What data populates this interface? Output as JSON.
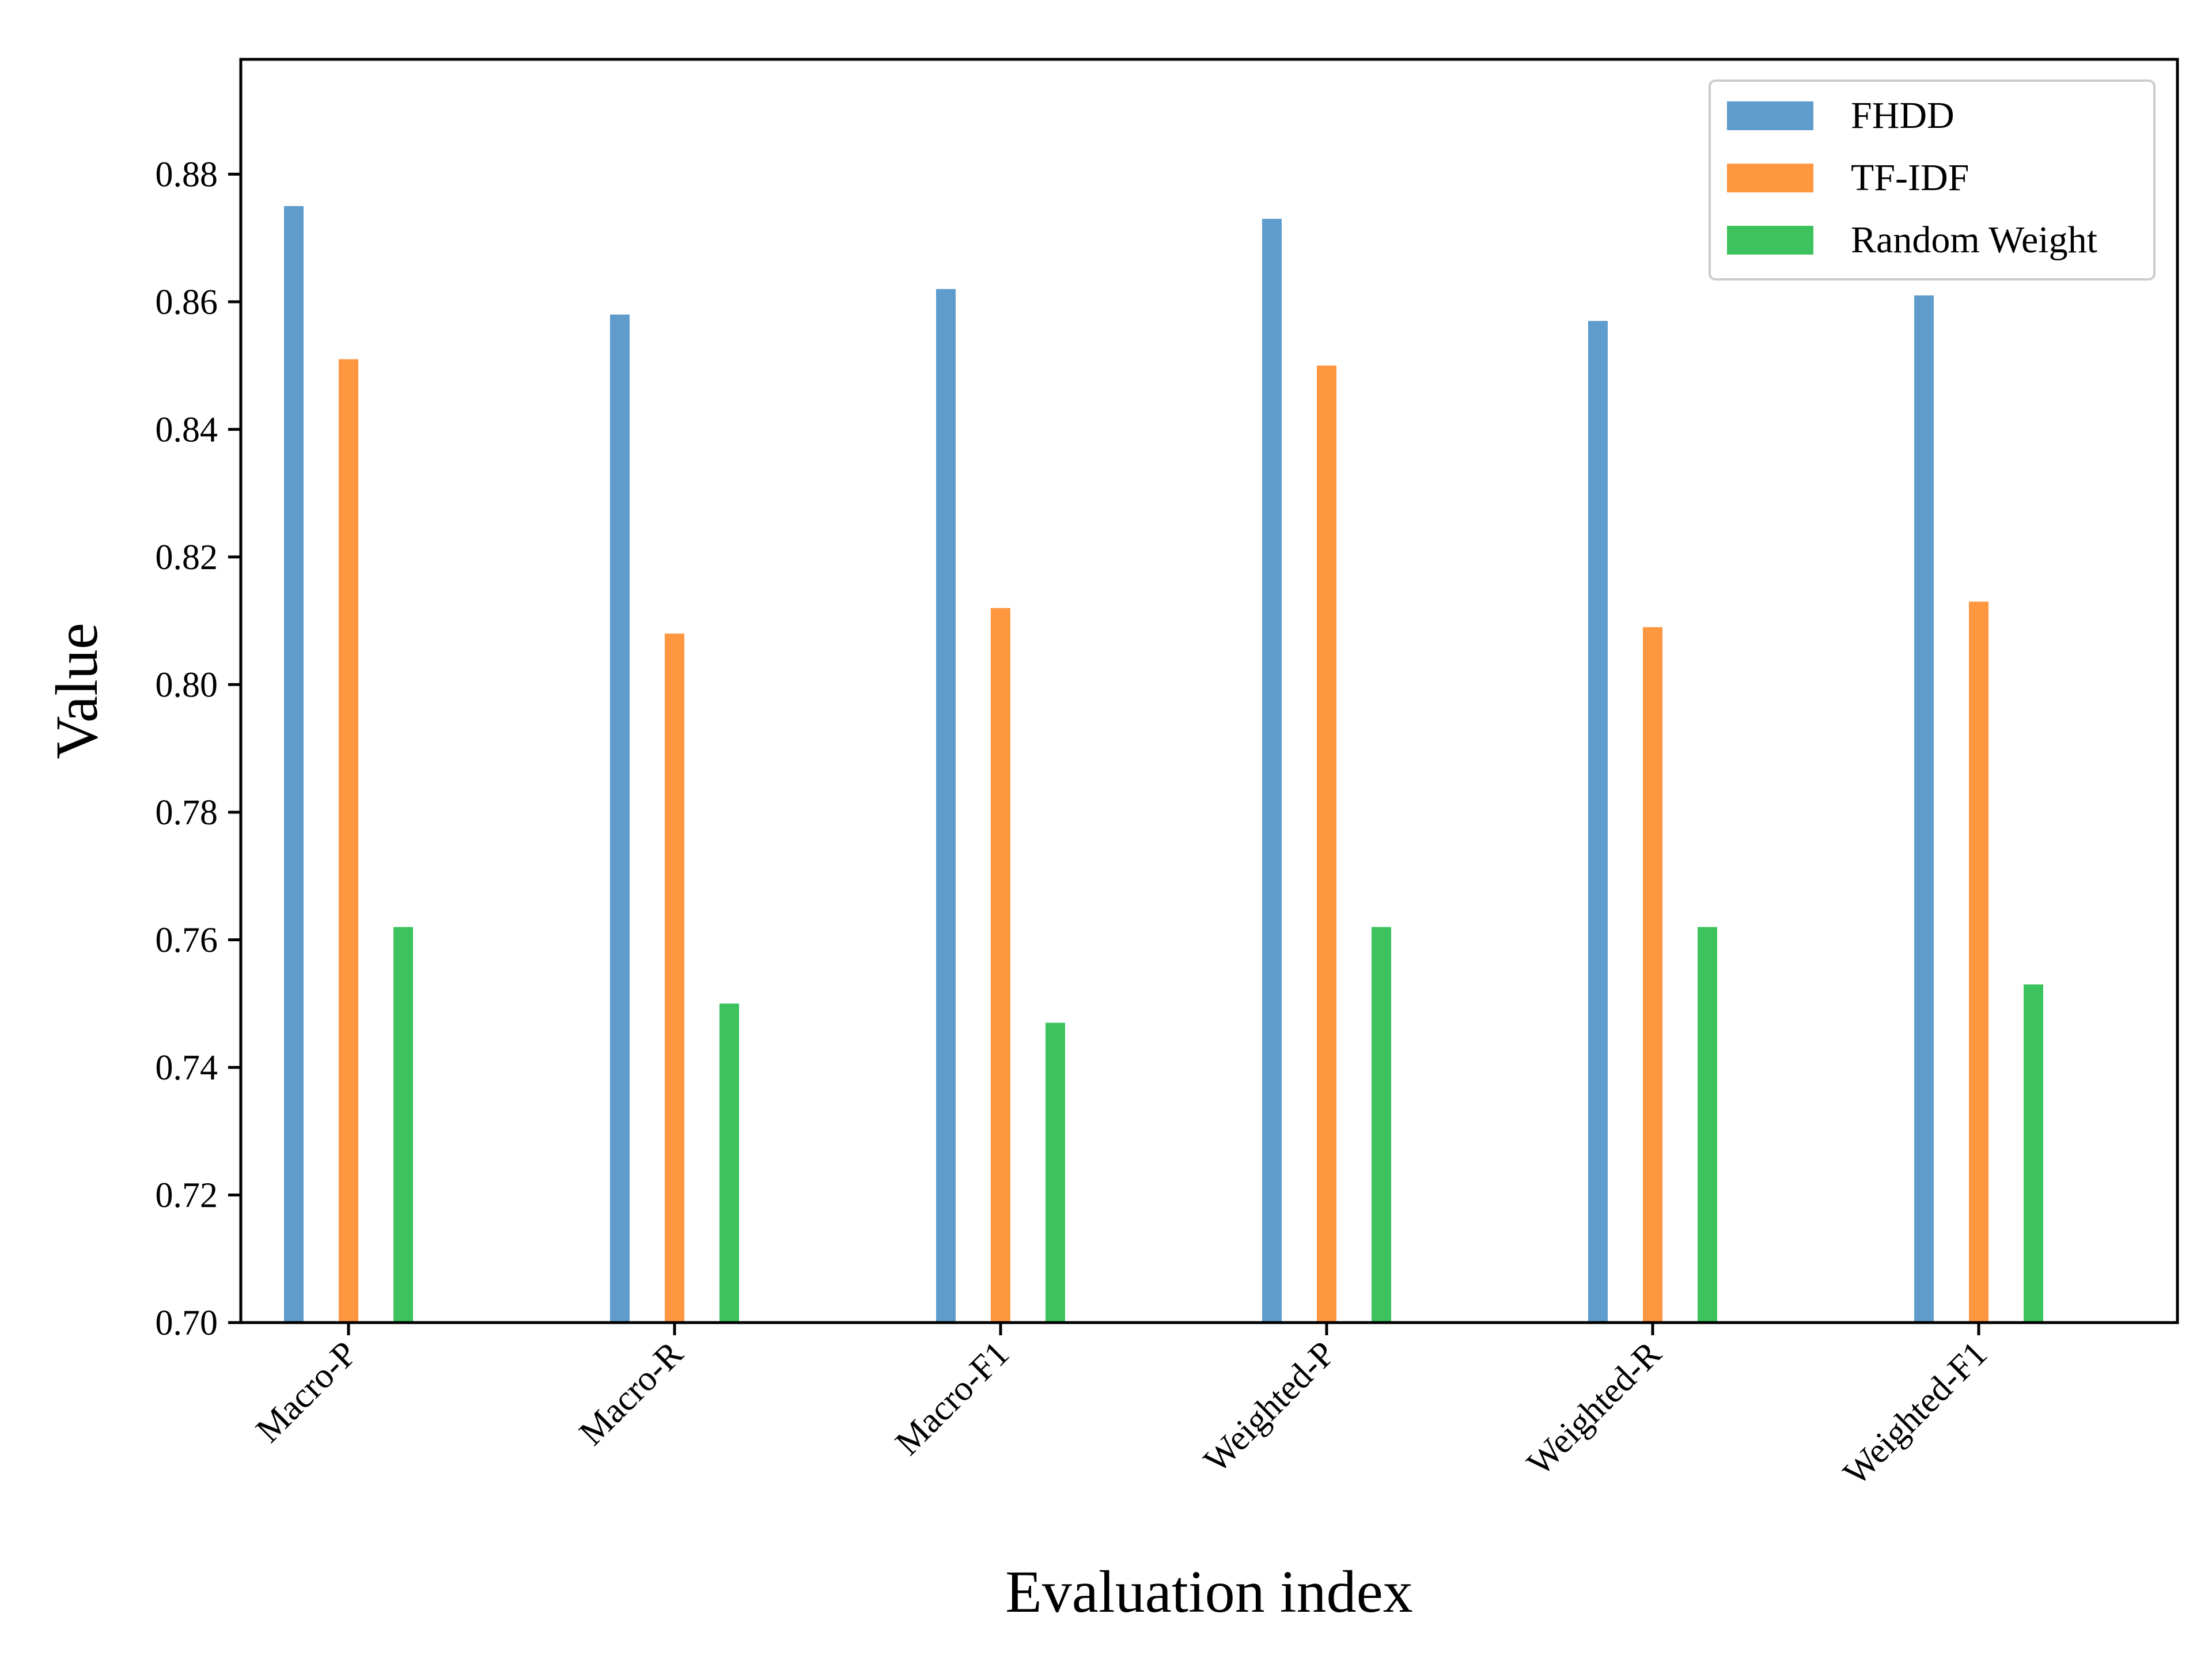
{
  "chart_data": {
    "type": "bar",
    "title": "",
    "xlabel": "Evaluation index",
    "ylabel": "Value",
    "ylim": [
      0.7,
      0.898
    ],
    "yticks": [
      "0.70",
      "0.72",
      "0.74",
      "0.76",
      "0.78",
      "0.80",
      "0.82",
      "0.84",
      "0.86",
      "0.88"
    ],
    "categories": [
      "Macro-P",
      "Macro-R",
      "Macro-F1",
      "Weighted-P",
      "Weighted-R",
      "Weighted-F1"
    ],
    "series": [
      {
        "name": "FHDD",
        "color": "#5f9ccb",
        "values": [
          0.875,
          0.858,
          0.862,
          0.873,
          0.857,
          0.861
        ]
      },
      {
        "name": "TF-IDF",
        "color": "#ff9640",
        "values": [
          0.851,
          0.808,
          0.812,
          0.85,
          0.809,
          0.813
        ]
      },
      {
        "name": "Random Weight",
        "color": "#3cc35e",
        "values": [
          0.762,
          0.75,
          0.747,
          0.762,
          0.762,
          0.753
        ]
      }
    ],
    "grid": false,
    "legend_position": "top-right"
  }
}
